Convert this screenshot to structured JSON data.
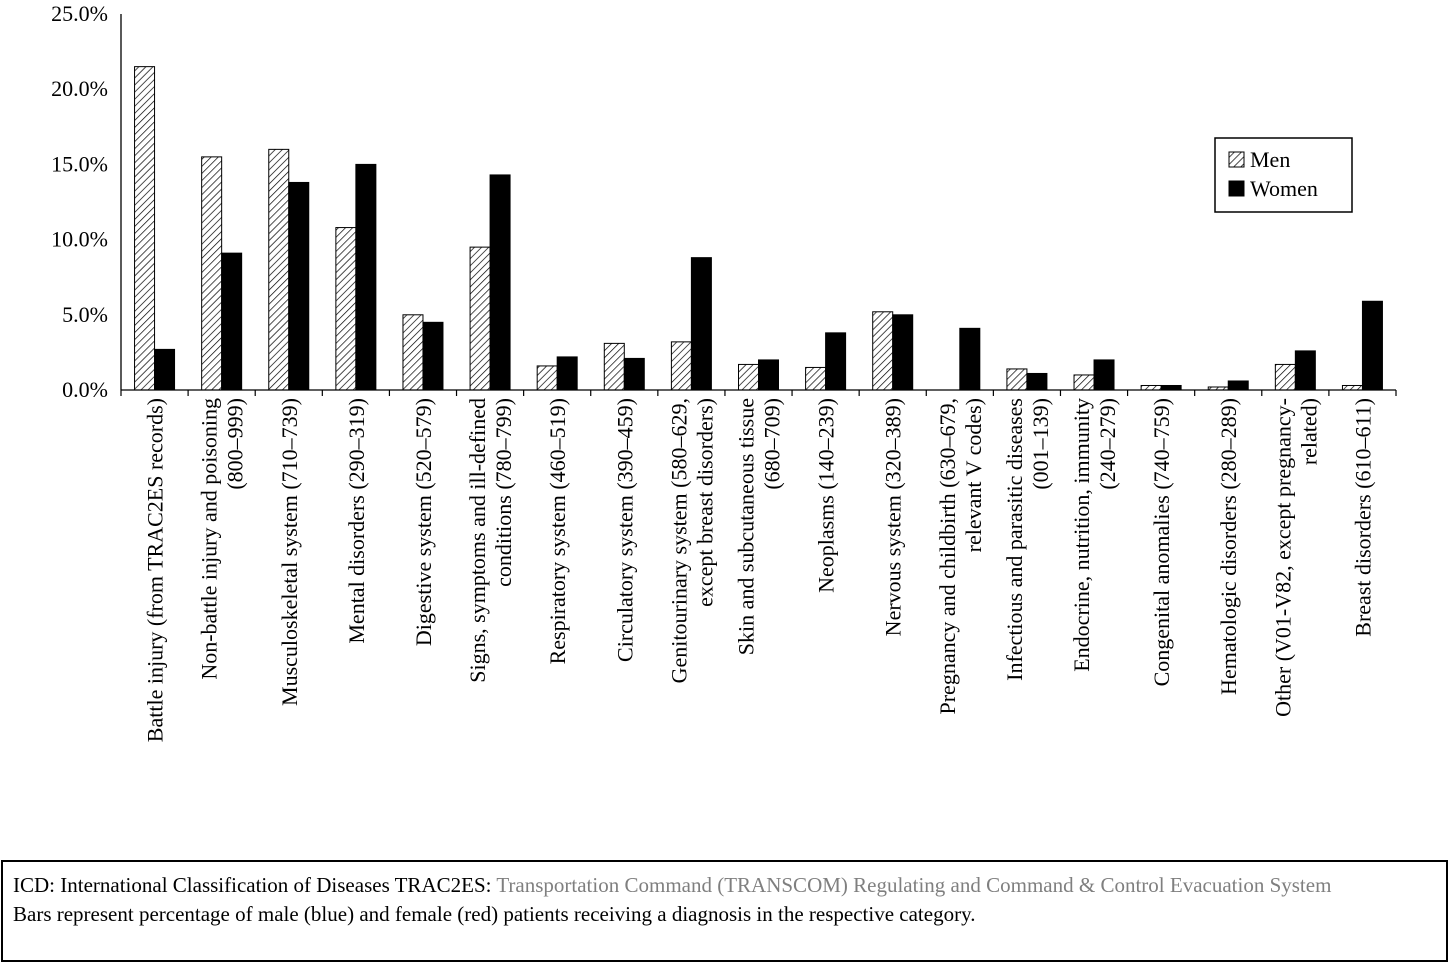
{
  "chart_data": {
    "type": "bar",
    "categories": [
      [
        "Battle injury (from TRAC2ES records)"
      ],
      [
        "Non-battle injury and poisoning",
        "(800–999)"
      ],
      [
        "Musculoskeletal system (710–739)"
      ],
      [
        "Mental disorders (290–319)"
      ],
      [
        "Digestive system (520–579)"
      ],
      [
        "Signs, symptoms and ill-defined",
        "conditions (780–799)"
      ],
      [
        "Respiratory system (460–519)"
      ],
      [
        "Circulatory system (390–459)"
      ],
      [
        "Genitourinary system (580–629,",
        "except breast disorders)"
      ],
      [
        "Skin and subcutaneous tissue",
        "(680–709)"
      ],
      [
        "Neoplasms (140–239)"
      ],
      [
        "Nervous system (320–389)"
      ],
      [
        "Pregnancy and childbirth (630–679,",
        "relevant V codes)"
      ],
      [
        "Infectious and parasitic diseases",
        "(001–139)"
      ],
      [
        "Endocrine, nutrition, immunity",
        "(240–279)"
      ],
      [
        "Congenital anomalies (740–759)"
      ],
      [
        "Hematologic disorders (280–289)"
      ],
      [
        "Other (V01-V82, except pregnancy-",
        "related)"
      ],
      [
        "Breast disorders (610–611)"
      ]
    ],
    "series": [
      {
        "name": "Men",
        "pattern": "hatched",
        "values": [
          21.5,
          15.5,
          16.0,
          10.8,
          5.0,
          9.5,
          1.6,
          3.1,
          3.2,
          1.7,
          1.5,
          5.2,
          0.0,
          1.4,
          1.0,
          0.3,
          0.2,
          1.7,
          0.3
        ]
      },
      {
        "name": "Women",
        "pattern": "solid",
        "color": "#000000",
        "values": [
          2.7,
          9.1,
          13.8,
          15.0,
          4.5,
          14.3,
          2.2,
          2.1,
          8.8,
          2.0,
          3.8,
          5.0,
          4.1,
          1.1,
          2.0,
          0.3,
          0.6,
          2.6,
          5.9
        ]
      }
    ],
    "yticks": [
      "0.0%",
      "5.0%",
      "10.0%",
      "15.0%",
      "20.0%",
      "25.0%"
    ],
    "ylim": [
      0,
      25
    ],
    "grid": false,
    "legend_position": "top-right"
  },
  "footnote": {
    "line1_black": "ICD: International Classification of Diseases TRAC2ES: ",
    "line1_grey": "Transportation Command (TRANSCOM) Regulating and Command & Control Evacuation System",
    "line2": "Bars represent percentage of male (blue) and female (red) patients receiving a diagnosis in the respective category."
  }
}
